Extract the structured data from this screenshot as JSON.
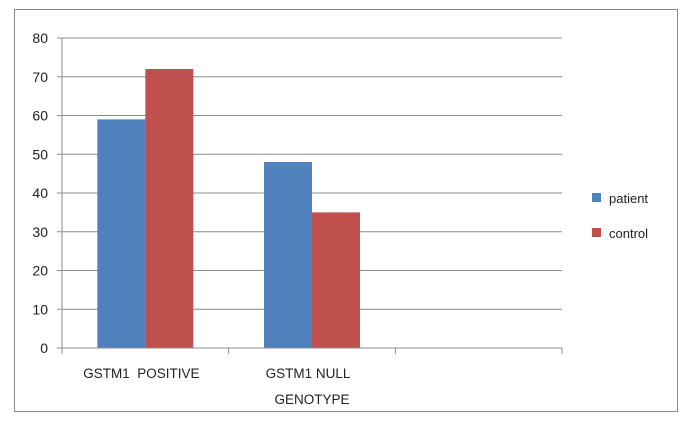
{
  "chart_data": {
    "type": "bar",
    "categories": [
      "GSTM1  POSITIVE",
      "GSTM1 NULL",
      ""
    ],
    "series": [
      {
        "name": "patient",
        "values": [
          59,
          48,
          null
        ],
        "color": "#4F81BD"
      },
      {
        "name": "control",
        "values": [
          72,
          35,
          null
        ],
        "color": "#C0504D"
      }
    ],
    "title": "",
    "xlabel": "GENOTYPE",
    "ylabel": "",
    "ylim": [
      0,
      80
    ],
    "yticks": [
      0,
      10,
      20,
      30,
      40,
      50,
      60,
      70,
      80
    ],
    "grid": true,
    "legend_position": "right"
  }
}
